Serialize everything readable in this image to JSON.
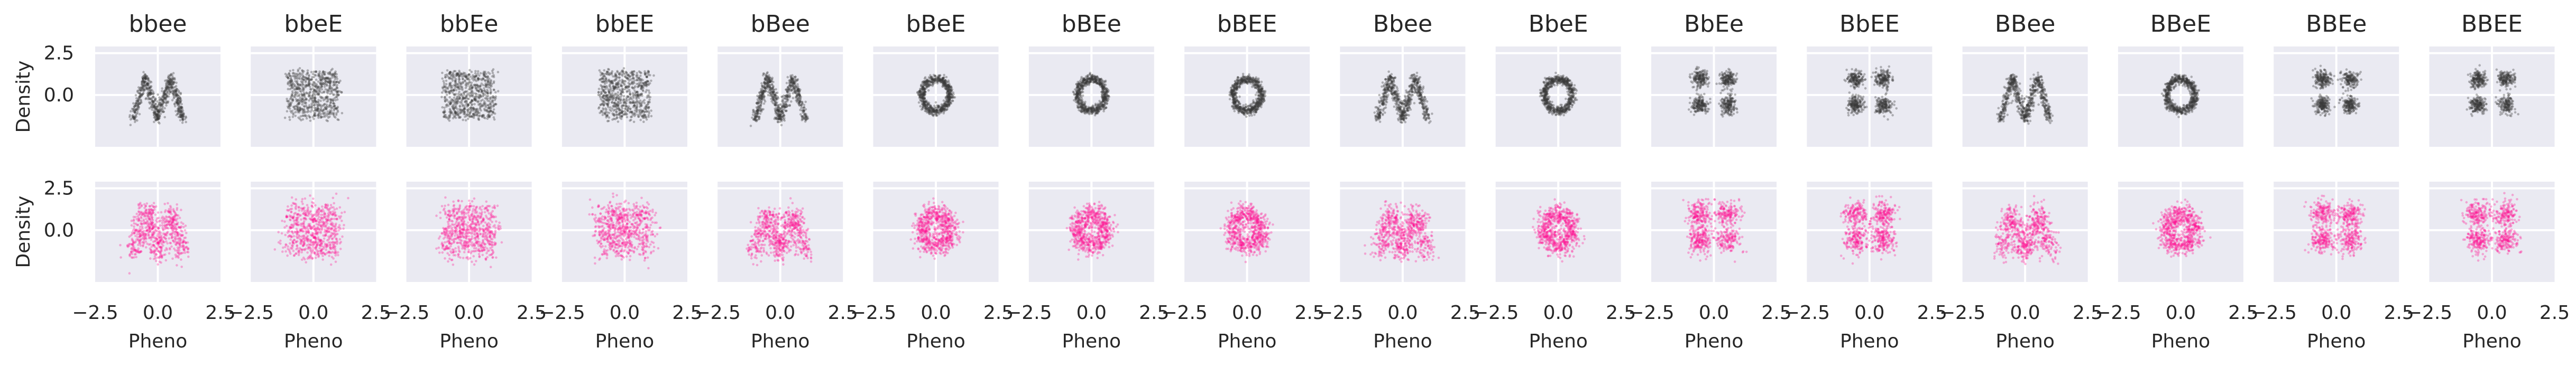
{
  "chart_data": {
    "type": "scatter",
    "layout_grid": {
      "rows": 2,
      "cols": 16
    },
    "columns": [
      "bbee",
      "bbeE",
      "bbEe",
      "bbEE",
      "bBee",
      "bBeE",
      "bBEe",
      "bBEE",
      "Bbee",
      "BbeE",
      "BbEe",
      "BbEE",
      "BBee",
      "BBeE",
      "BBEe",
      "BBEE"
    ],
    "patterns": [
      "w",
      "square",
      "square",
      "square",
      "w",
      "ring",
      "ring",
      "ring",
      "w",
      "ring",
      "blobs",
      "blobs",
      "w",
      "ring",
      "blobs",
      "blobs"
    ],
    "rows": [
      {
        "name": "",
        "color": "#3a3a3a",
        "opacity": 0.35,
        "noise": 0.13
      },
      {
        "name": "",
        "color": "#ff1493",
        "opacity": 0.32,
        "noise": 0.33
      }
    ],
    "xlabel": "Pheno",
    "ylabel": "Density",
    "xlim": [
      -2.5,
      2.5
    ],
    "ylim": [
      -3.1,
      2.9
    ],
    "xticks": [
      -2.5,
      0.0,
      2.5
    ],
    "xtick_labels": [
      "−2.5",
      "0.0",
      "2.5"
    ],
    "yticks": [
      -0.0,
      2.5
    ],
    "ytick_labels": [
      "0.0",
      "2.5"
    ],
    "grid": true,
    "style": "seaborn-darkgrid",
    "points_per_panel": 700
  }
}
